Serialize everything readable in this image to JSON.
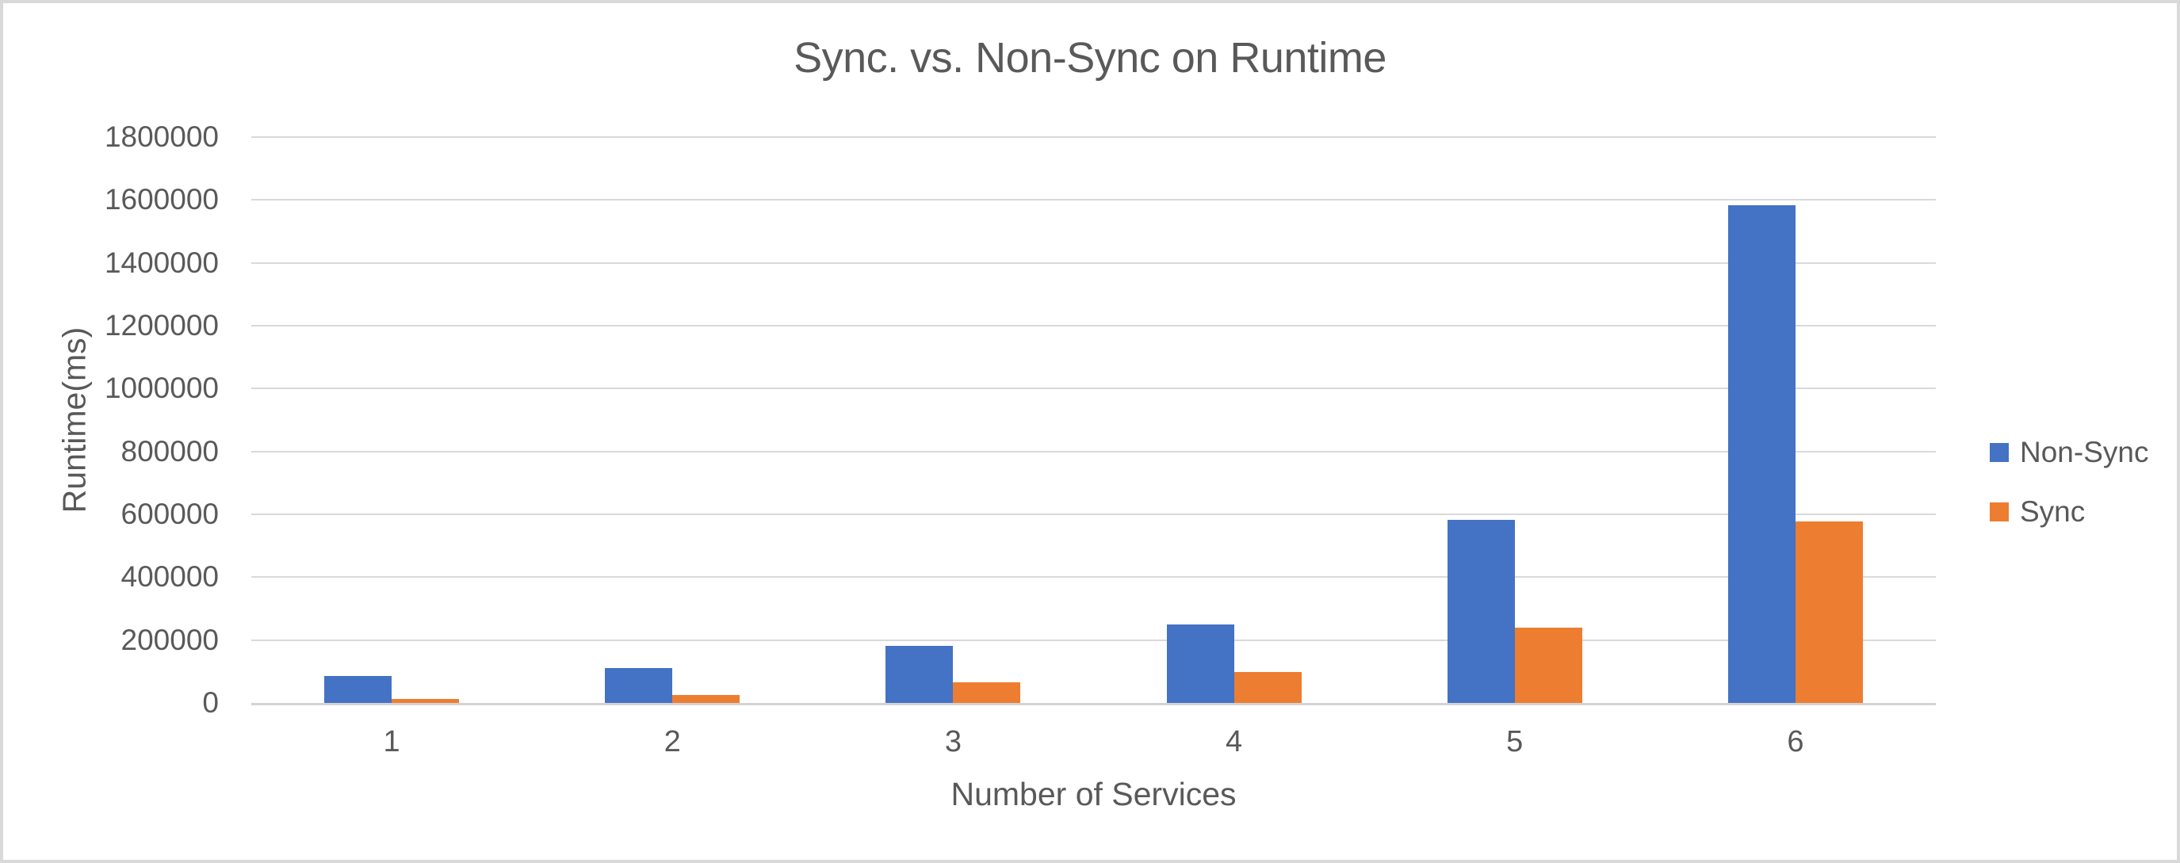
{
  "chart_data": {
    "type": "bar",
    "title": "Sync. vs. Non-Sync on Runtime",
    "xlabel": "Number of Services",
    "ylabel": "Runtime(ms)",
    "categories": [
      "1",
      "2",
      "3",
      "4",
      "5",
      "6"
    ],
    "series": [
      {
        "name": "Non-Sync",
        "color": "#4472C4",
        "values": [
          85000,
          112000,
          181000,
          250000,
          583000,
          1582000
        ]
      },
      {
        "name": "Sync",
        "color": "#ED7D31",
        "values": [
          12000,
          26000,
          65000,
          98000,
          239000,
          578000
        ]
      }
    ],
    "ylim": [
      0,
      1800000
    ],
    "ytick_step": 200000,
    "ytick_labels": [
      "0",
      "200000",
      "400000",
      "600000",
      "800000",
      "1000000",
      "1200000",
      "1400000",
      "1600000",
      "1800000"
    ],
    "grid": true,
    "legend_position": "right"
  },
  "colors": {
    "text": "#595959",
    "gridline": "#D9D9D9",
    "axis_line": "#D3D3D3",
    "background": "#FFFFFF",
    "border": "#D9D9D9"
  }
}
